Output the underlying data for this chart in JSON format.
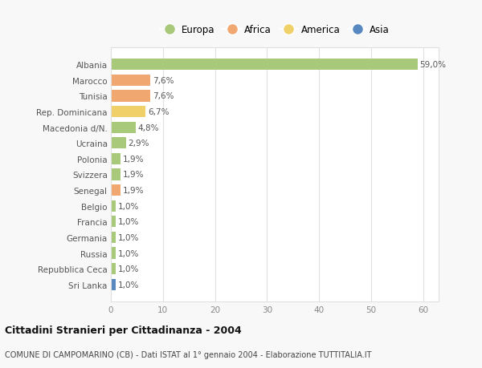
{
  "categories": [
    "Albania",
    "Marocco",
    "Tunisia",
    "Rep. Dominicana",
    "Macedonia d/N.",
    "Ucraina",
    "Polonia",
    "Svizzera",
    "Senegal",
    "Belgio",
    "Francia",
    "Germania",
    "Russia",
    "Repubblica Ceca",
    "Sri Lanka"
  ],
  "values": [
    59.0,
    7.6,
    7.6,
    6.7,
    4.8,
    2.9,
    1.9,
    1.9,
    1.9,
    1.0,
    1.0,
    1.0,
    1.0,
    1.0,
    1.0
  ],
  "labels": [
    "59,0%",
    "7,6%",
    "7,6%",
    "6,7%",
    "4,8%",
    "2,9%",
    "1,9%",
    "1,9%",
    "1,9%",
    "1,0%",
    "1,0%",
    "1,0%",
    "1,0%",
    "1,0%",
    "1,0%"
  ],
  "colors": [
    "#a8c87a",
    "#f0a870",
    "#f0a870",
    "#f0d068",
    "#a8c87a",
    "#a8c87a",
    "#a8c87a",
    "#a8c87a",
    "#f0a870",
    "#a8c87a",
    "#a8c87a",
    "#a8c87a",
    "#a8c87a",
    "#a8c87a",
    "#5888c0"
  ],
  "legend_labels": [
    "Europa",
    "Africa",
    "America",
    "Asia"
  ],
  "legend_colors": [
    "#a8c87a",
    "#f0a870",
    "#f0d068",
    "#5888c0"
  ],
  "title": "Cittadini Stranieri per Cittadinanza - 2004",
  "subtitle": "COMUNE DI CAMPOMARINO (CB) - Dati ISTAT al 1° gennaio 2004 - Elaborazione TUTTITALIA.IT",
  "xlim": [
    0,
    63
  ],
  "xticks": [
    0,
    10,
    20,
    30,
    40,
    50,
    60
  ],
  "bg_color": "#f8f8f8",
  "bar_bg_color": "#ffffff",
  "grid_color": "#e0e0e0"
}
